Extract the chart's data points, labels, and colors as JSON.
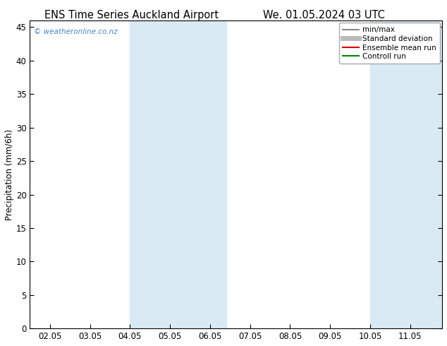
{
  "title_left": "ENS Time Series Auckland Airport",
  "title_right": "We. 01.05.2024 03 UTC",
  "ylabel": "Precipitation (mm/6h)",
  "ylim": [
    0,
    46
  ],
  "yticks": [
    0,
    5,
    10,
    15,
    20,
    25,
    30,
    35,
    40,
    45
  ],
  "xtick_labels": [
    "02.05",
    "03.05",
    "04.05",
    "05.05",
    "06.05",
    "07.05",
    "08.05",
    "09.05",
    "10.05",
    "11.05"
  ],
  "xtick_positions": [
    0,
    1,
    2,
    3,
    4,
    5,
    6,
    7,
    8,
    9
  ],
  "xlim": [
    -0.5,
    9.8
  ],
  "shaded_bands": [
    {
      "xmin": 2.0,
      "xmax": 4.4,
      "color": "#daeaf5"
    },
    {
      "xmin": 8.0,
      "xmax": 9.8,
      "color": "#daeaf5"
    }
  ],
  "watermark": "© weatheronline.co.nz",
  "watermark_color": "#4488cc",
  "legend_items": [
    {
      "label": "min/max",
      "color": "#888888",
      "lw": 1.5
    },
    {
      "label": "Standard deviation",
      "color": "#bbbbbb",
      "lw": 5
    },
    {
      "label": "Ensemble mean run",
      "color": "#dd0000",
      "lw": 1.5
    },
    {
      "label": "Controll run",
      "color": "#008800",
      "lw": 1.5
    }
  ],
  "bg_color": "#ffffff",
  "plot_bg_color": "#ffffff",
  "spine_color": "#000000",
  "title_fontsize": 10.5,
  "axis_fontsize": 8.5,
  "tick_fontsize": 8.5
}
